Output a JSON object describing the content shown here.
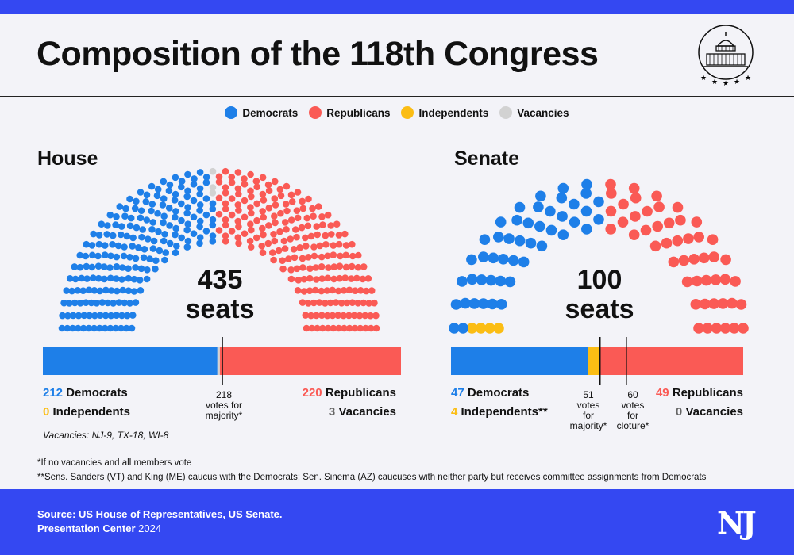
{
  "header": {
    "title": "Composition of the 118th Congress"
  },
  "colors": {
    "democrats": "#1e7fe8",
    "republicans": "#fa5a55",
    "independents": "#fbbd14",
    "vacancies": "#d2d2d2",
    "brand": "#3448f2"
  },
  "legend": {
    "items": [
      {
        "label": "Democrats",
        "color": "#1e7fe8"
      },
      {
        "label": "Republicans",
        "color": "#fa5a55"
      },
      {
        "label": "Independents",
        "color": "#fbbd14"
      },
      {
        "label": "Vacancies",
        "color": "#d2d2d2"
      }
    ]
  },
  "house": {
    "title": "House",
    "seats_number": "435",
    "seats_word": "seats",
    "dem_count": "212",
    "dem_label": "Democrats",
    "ind_count": "0",
    "ind_label": "Independents",
    "rep_count": "220",
    "rep_label": "Republicans",
    "vac_count": "3",
    "vac_label": "Vacancies",
    "majority_note": [
      "218",
      "votes for",
      "majority*"
    ],
    "vacancies_note": "Vacancies: NJ-9, TX-18, WI-8"
  },
  "senate": {
    "title": "Senate",
    "seats_number": "100",
    "seats_word": "seats",
    "dem_count": "47",
    "dem_label": "Democrats",
    "ind_count": "4",
    "ind_label": "Independents**",
    "rep_count": "49",
    "rep_label": "Republicans",
    "vac_count": "0",
    "vac_label": "Vacancies",
    "majority_note": [
      "51",
      "votes",
      "for",
      "majority*"
    ],
    "cloture_note": [
      "60",
      "votes",
      "for",
      "cloture*"
    ]
  },
  "footnotes": [
    "*If no vacancies and all members vote",
    "**Sens. Sanders (VT) and King (ME) caucus with the Democrats; Sen. Sinema (AZ) caucuses with neither party but receives committee assignments from Democrats"
  ],
  "footer": {
    "source": "Source: US House of Representatives, US Senate.",
    "org": "Presentation Center",
    "year": "2024",
    "logo_text": "NJ"
  },
  "chart_data": [
    {
      "type": "parliament",
      "title": "House",
      "total_seats": 435,
      "series": [
        {
          "name": "Democrats",
          "value": 212
        },
        {
          "name": "Independents",
          "value": 0
        },
        {
          "name": "Vacancies",
          "value": 3
        },
        {
          "name": "Republicans",
          "value": 220
        }
      ],
      "threshold_lines": [
        {
          "value": 218,
          "label": "218 votes for majority*"
        }
      ]
    },
    {
      "type": "parliament",
      "title": "Senate",
      "total_seats": 100,
      "series": [
        {
          "name": "Independents",
          "value": 4
        },
        {
          "name": "Democrats",
          "value": 47
        },
        {
          "name": "Republicans",
          "value": 49
        },
        {
          "name": "Vacancies",
          "value": 0
        }
      ],
      "threshold_lines": [
        {
          "value": 51,
          "label": "51 votes for majority*"
        },
        {
          "value": 60,
          "label": "60 votes for cloture*"
        }
      ]
    }
  ]
}
